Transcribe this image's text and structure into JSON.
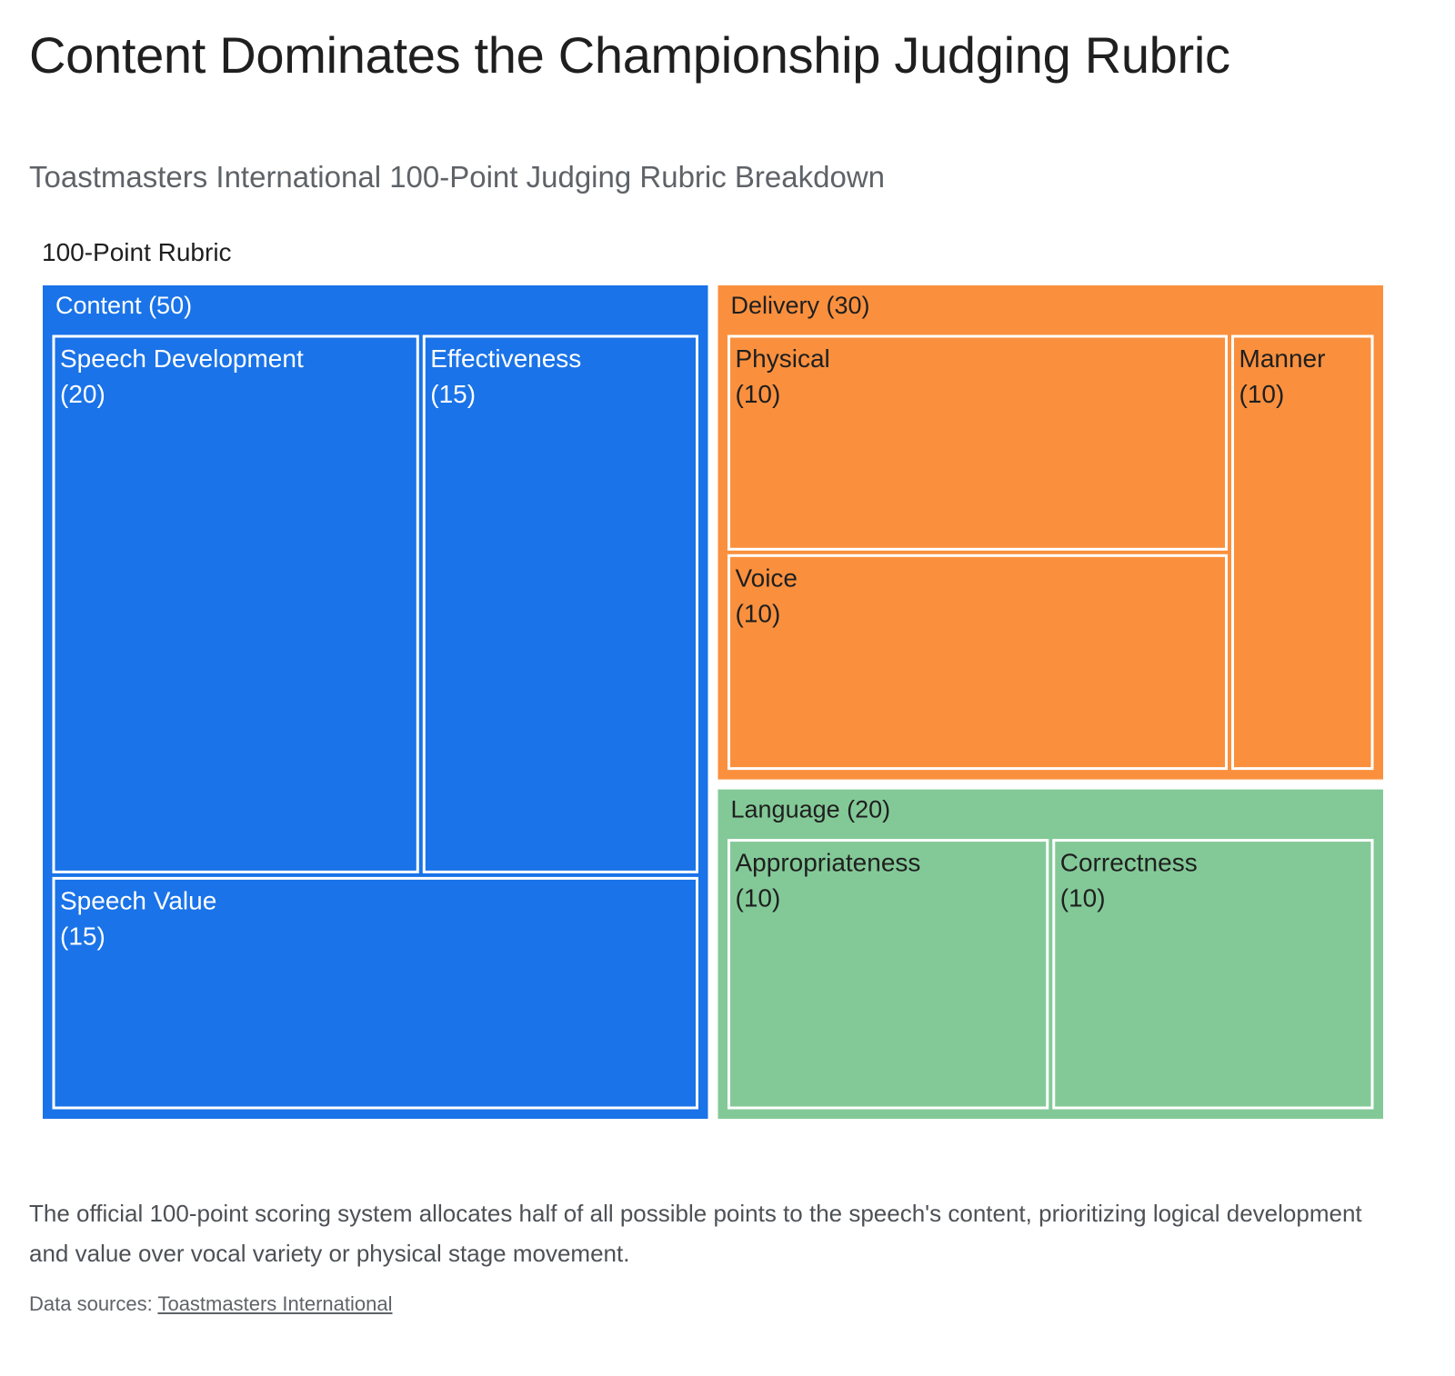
{
  "header": {
    "title": "Content Dominates the Championship Judging Rubric",
    "subtitle": "Toastmasters International 100-Point Judging Rubric Breakdown"
  },
  "chart_data": {
    "type": "treemap",
    "root_label": "100-Point Rubric",
    "colors": {
      "Content": "#1a73e8",
      "Delivery": "#fa903e",
      "Language": "#83c997"
    },
    "groups": [
      {
        "name": "Content",
        "label": "Content (50)",
        "value": 50,
        "children": [
          {
            "name": "Speech Development",
            "value": 20,
            "lines": [
              "Speech Development",
              "(20)"
            ]
          },
          {
            "name": "Effectiveness",
            "value": 15,
            "lines": [
              "Effectiveness",
              "(15)"
            ]
          },
          {
            "name": "Speech Value",
            "value": 15,
            "lines": [
              "Speech Value",
              "(15)"
            ]
          }
        ]
      },
      {
        "name": "Delivery",
        "label": "Delivery (30)",
        "value": 30,
        "children": [
          {
            "name": "Physical",
            "value": 10,
            "lines": [
              "Physical",
              "(10)"
            ]
          },
          {
            "name": "Voice",
            "value": 10,
            "lines": [
              "Voice",
              "(10)"
            ]
          },
          {
            "name": "Manner",
            "value": 10,
            "lines": [
              "Manner",
              "(10)"
            ]
          }
        ]
      },
      {
        "name": "Language",
        "label": "Language (20)",
        "value": 20,
        "children": [
          {
            "name": "Appropriateness",
            "value": 10,
            "lines": [
              "Appropriateness",
              "(10)"
            ]
          },
          {
            "name": "Correctness",
            "value": 10,
            "lines": [
              "Correctness",
              "(10)"
            ]
          }
        ]
      }
    ]
  },
  "footer": {
    "caption": "The official 100-point scoring system allocates half of all possible points to the speech's content, prioritizing logical development and value over vocal variety or physical stage movement.",
    "sources_prefix": "Data sources: ",
    "sources_link": "Toastmasters International"
  }
}
